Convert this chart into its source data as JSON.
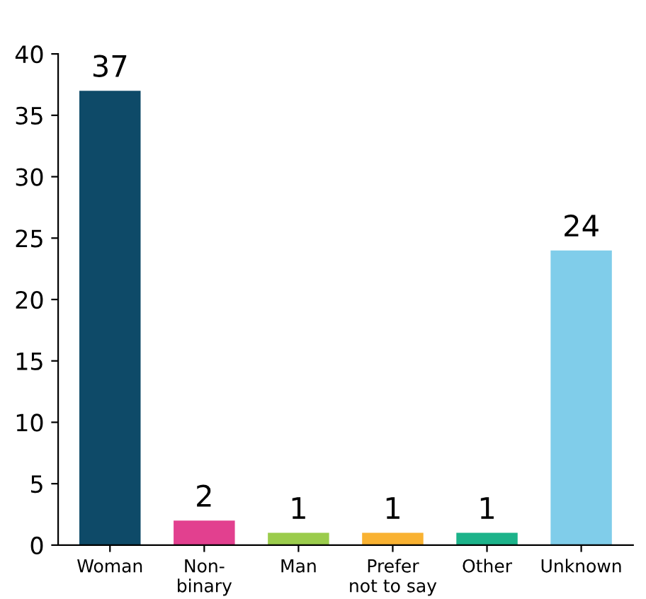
{
  "chart_data": {
    "type": "bar",
    "categories": [
      "Woman",
      "Non-\nbinary",
      "Man",
      "Prefer\nnot to say",
      "Other",
      "Unknown"
    ],
    "values": [
      37,
      2,
      1,
      1,
      1,
      24
    ],
    "colors": [
      "#0e4a68",
      "#e2408f",
      "#9bcc4c",
      "#f9b232",
      "#1cb38a",
      "#80cdea"
    ],
    "ylim": [
      0,
      40
    ],
    "yticks": [
      0,
      5,
      10,
      15,
      20,
      25,
      30,
      35,
      40
    ],
    "data_labels": true,
    "grid": false,
    "legend": false
  }
}
